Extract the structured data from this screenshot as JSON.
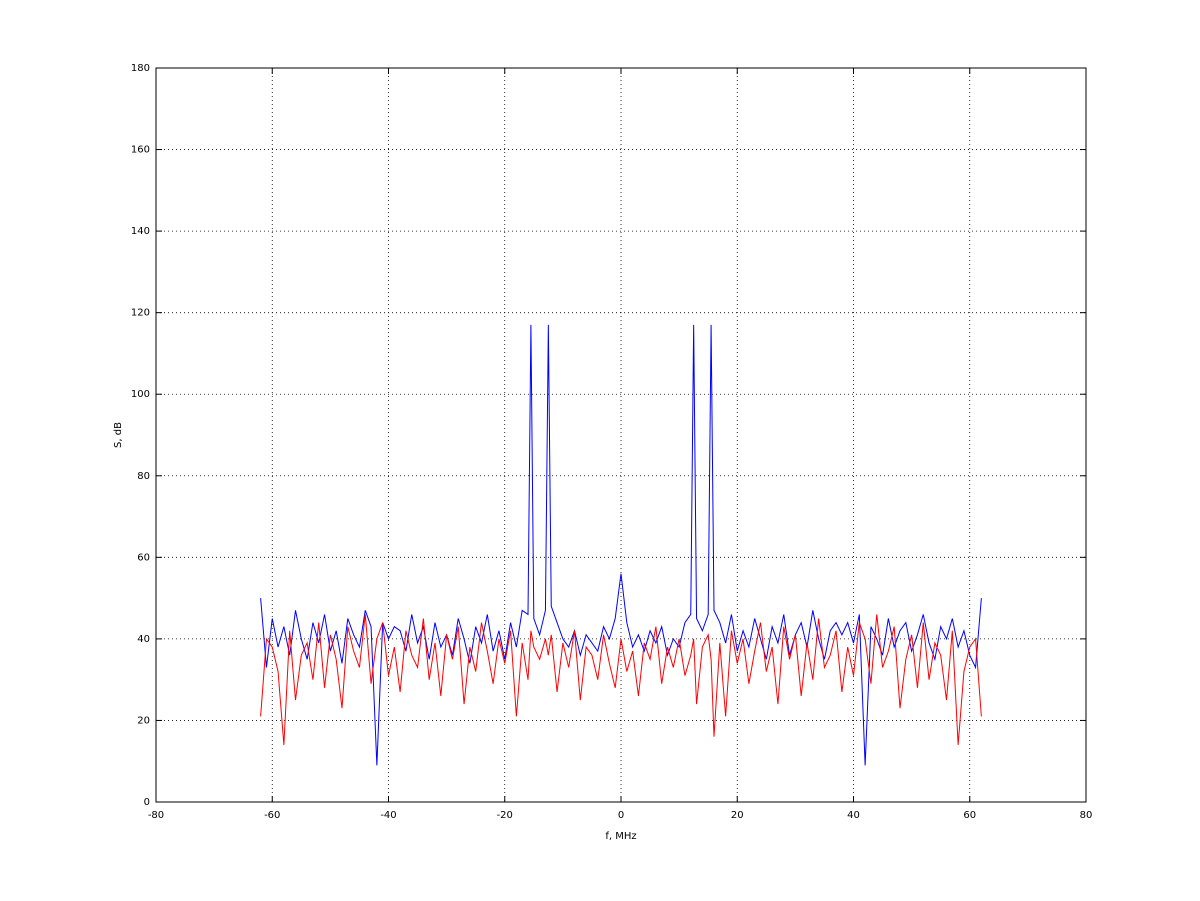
{
  "chart_data": {
    "type": "line",
    "xlabel": "f, MHz",
    "ylabel": "S, dB",
    "xlim": [
      -80,
      80
    ],
    "xticks": [
      -80,
      -60,
      -40,
      -20,
      0,
      20,
      40,
      60,
      80
    ],
    "ylim": [
      0,
      180
    ],
    "yticks": [
      0,
      20,
      40,
      60,
      80,
      100,
      120,
      140,
      160,
      180
    ],
    "grid": true,
    "x": [
      -62,
      -61,
      -60,
      -59,
      -58,
      -57,
      -56,
      -55,
      -54,
      -53,
      -52,
      -51,
      -50,
      -49,
      -48,
      -47,
      -46,
      -45,
      -44,
      -43,
      -42,
      -41,
      -40,
      -39,
      -38,
      -37,
      -36,
      -35,
      -34,
      -33,
      -32,
      -31,
      -30,
      -29,
      -28,
      -27,
      -26,
      -25,
      -24,
      -23,
      -22,
      -21,
      -20,
      -19,
      -18,
      -17,
      -16,
      -15.5,
      -15,
      -14,
      -13,
      -12.5,
      -12,
      -11,
      -10,
      -9,
      -8,
      -7,
      -6,
      -5,
      -4,
      -3,
      -2,
      -1,
      0,
      1,
      2,
      3,
      4,
      5,
      6,
      7,
      8,
      9,
      10,
      11,
      12,
      12.5,
      13,
      14,
      15,
      15.5,
      16,
      17,
      18,
      19,
      20,
      21,
      22,
      23,
      24,
      25,
      26,
      27,
      28,
      29,
      30,
      31,
      32,
      33,
      34,
      35,
      36,
      37,
      38,
      39,
      40,
      41,
      42,
      43,
      44,
      45,
      46,
      47,
      48,
      49,
      50,
      51,
      52,
      53,
      54,
      55,
      56,
      57,
      58,
      59,
      60,
      61,
      62
    ],
    "series": [
      {
        "name": "blue",
        "color": "#0000ff",
        "values": [
          50,
          33,
          45,
          38,
          43,
          36,
          47,
          40,
          35,
          44,
          39,
          46,
          37,
          42,
          34,
          45,
          41,
          38,
          47,
          43,
          9,
          44,
          40,
          43,
          42,
          37,
          46,
          39,
          43,
          35,
          44,
          38,
          41,
          36,
          45,
          40,
          34,
          43,
          39,
          46,
          37,
          42,
          35,
          44,
          38,
          47,
          46,
          117,
          45,
          41,
          47,
          117,
          48,
          44,
          40,
          38,
          42,
          36,
          41,
          39,
          37,
          43,
          40,
          45,
          56,
          44,
          38,
          41,
          37,
          42,
          39,
          43,
          36,
          40,
          38,
          44,
          46,
          117,
          45,
          42,
          46,
          117,
          47,
          44,
          39,
          46,
          37,
          42,
          38,
          45,
          40,
          35,
          43,
          39,
          46,
          36,
          41,
          44,
          38,
          47,
          40,
          35,
          42,
          44,
          41,
          44,
          39,
          46,
          9,
          43,
          40,
          36,
          45,
          38,
          42,
          44,
          37,
          41,
          46,
          39,
          35,
          43,
          40,
          45,
          38,
          42,
          36,
          33,
          50
        ]
      },
      {
        "name": "red",
        "color": "#ff0000",
        "values": [
          21,
          40,
          38,
          32,
          14,
          42,
          25,
          36,
          39,
          30,
          44,
          28,
          41,
          35,
          23,
          43,
          37,
          33,
          46,
          29,
          40,
          44,
          31,
          38,
          27,
          42,
          36,
          33,
          45,
          30,
          39,
          26,
          41,
          35,
          43,
          24,
          38,
          32,
          44,
          37,
          29,
          40,
          34,
          42,
          21,
          39,
          30,
          42,
          38,
          35,
          40,
          36,
          41,
          27,
          39,
          33,
          42,
          25,
          38,
          36,
          30,
          41,
          34,
          28,
          40,
          32,
          37,
          26,
          39,
          35,
          43,
          29,
          38,
          33,
          40,
          31,
          36,
          40,
          24,
          38,
          41,
          35,
          16,
          39,
          21,
          42,
          34,
          40,
          29,
          37,
          44,
          32,
          38,
          24,
          43,
          35,
          41,
          26,
          39,
          30,
          45,
          33,
          36,
          42,
          27,
          38,
          31,
          44,
          40,
          29,
          46,
          33,
          37,
          43,
          23,
          35,
          41,
          28,
          44,
          30,
          39,
          36,
          25,
          42,
          14,
          32,
          38,
          40,
          21
        ]
      }
    ]
  }
}
